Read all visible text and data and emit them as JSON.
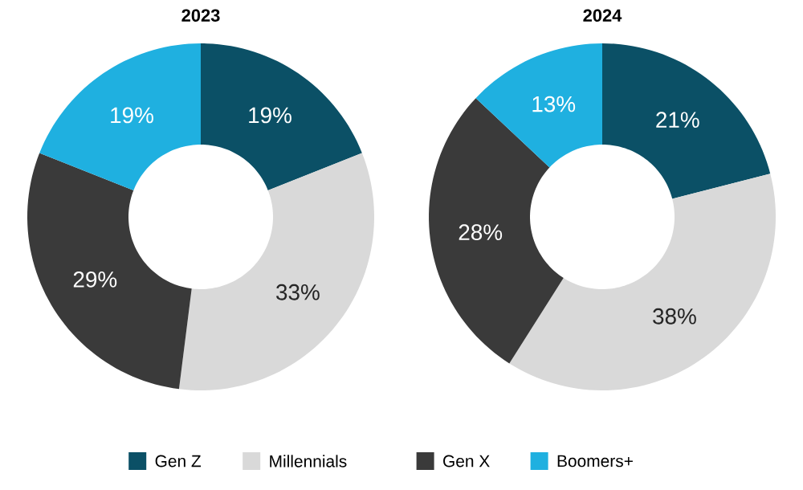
{
  "chart_data": [
    {
      "type": "donut",
      "title": "2023",
      "categories": [
        "Gen Z",
        "Millennials",
        "Gen X",
        "Boomers+"
      ],
      "values": [
        19,
        33,
        29,
        19
      ],
      "value_labels": [
        "19%",
        "33%",
        "29%",
        "19%"
      ],
      "colors": [
        "#0b5066",
        "#d9d9d9",
        "#3a3a3a",
        "#1fb0e0"
      ],
      "legend": "bottom"
    },
    {
      "type": "donut",
      "title": "2024",
      "categories": [
        null,
        null,
        null,
        null
      ],
      "values": [
        21,
        38,
        28,
        13
      ],
      "value_labels": [
        "21%",
        "38%",
        "28%",
        "13%"
      ],
      "colors": [
        "#0b5066",
        "#d9d9d9",
        "#3a3a3a",
        "#1fb0e0"
      ]
    }
  ]
}
